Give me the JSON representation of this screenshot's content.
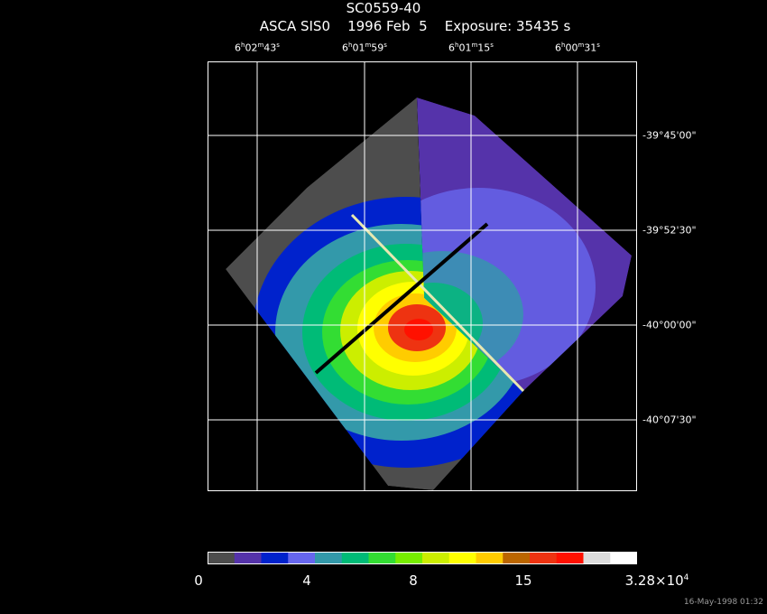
{
  "header": {
    "object": "SC0559-40",
    "instrument": "ASCA SIS0",
    "date": "1996 Feb  5",
    "exposure": "Exposure: 35435 s"
  },
  "ra_labels": [
    {
      "h": "6",
      "m": "02",
      "s": "43"
    },
    {
      "h": "6",
      "m": "01",
      "s": "59"
    },
    {
      "h": "6",
      "m": "01",
      "s": "15"
    },
    {
      "h": "6",
      "m": "00",
      "s": "31"
    }
  ],
  "dec_labels": [
    "-39°45'00\"",
    "-39°52'30\"",
    "-40°00'00\"",
    "-40°07'30\""
  ],
  "colorbar": {
    "colors": [
      "#4d4d4d",
      "#5533aa",
      "#0022cc",
      "#6666ee",
      "#3399aa",
      "#00bb77",
      "#33dd33",
      "#77ee00",
      "#ccee00",
      "#ffff00",
      "#ffcc00",
      "#bb6600",
      "#ee3311",
      "#ff1100",
      "#dddddd",
      "#ffffff"
    ],
    "labels": [
      "0",
      "4",
      "8",
      "15"
    ],
    "max_label": "3.28×10",
    "max_exp": "4"
  },
  "footer": "16-May-1998 01:32"
}
